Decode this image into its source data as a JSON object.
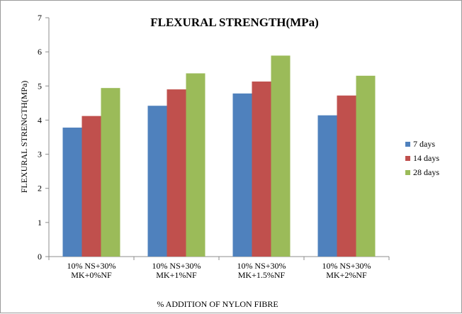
{
  "chart_data": {
    "type": "bar",
    "title": "FLEXURAL STRENGTH(MPa)",
    "xlabel": "% ADDITION OF NYLON FIBRE",
    "ylabel": "FLEXURAL STRENGTH(MPa)",
    "ylim": [
      0,
      7
    ],
    "yticks": [
      "0",
      "1",
      "2",
      "3",
      "4",
      "5",
      "6",
      "7"
    ],
    "grid": false,
    "legend_position": "right",
    "categories": [
      [
        "10% NS+30%",
        "MK+0%NF"
      ],
      [
        "10% NS+30%",
        "MK+1%NF"
      ],
      [
        "10% NS+30%",
        "MK+1.5%NF"
      ],
      [
        "10% NS+30%",
        "MK+2%NF"
      ]
    ],
    "series": [
      {
        "name": "7 days",
        "color": "#4f81bd",
        "values": [
          3.78,
          4.42,
          4.78,
          4.14
        ]
      },
      {
        "name": "14 days",
        "color": "#c0504d",
        "values": [
          4.12,
          4.9,
          5.13,
          4.72
        ]
      },
      {
        "name": "28 days",
        "color": "#9bbb59",
        "values": [
          4.94,
          5.37,
          5.89,
          5.3
        ]
      }
    ]
  }
}
